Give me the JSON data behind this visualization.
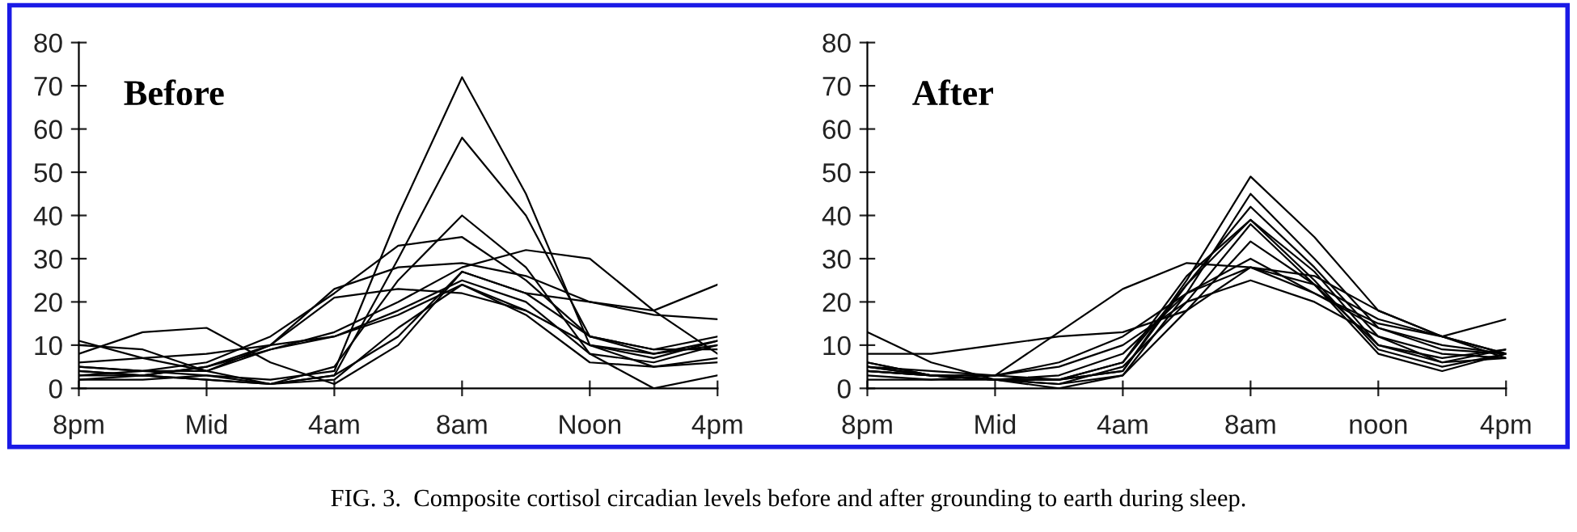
{
  "chart_data": [
    {
      "type": "line",
      "title": "Before",
      "categories": [
        "8pm",
        null,
        "Mid",
        null,
        "4am",
        null,
        "8am",
        null,
        "Noon",
        null,
        "4pm"
      ],
      "ylim": [
        0,
        80
      ],
      "yticks": [
        0,
        10,
        20,
        30,
        40,
        50,
        60,
        70,
        80
      ],
      "annotations": [
        "FIG. 3.  Composite cortisol circadian levels before and after grounding to earth during sleep."
      ],
      "series": [
        {
          "color": "#000000",
          "values": [
            5,
            4,
            3,
            2,
            4,
            40,
            72,
            45,
            10,
            8,
            11
          ]
        },
        {
          "color": "#000000",
          "values": [
            4,
            3,
            2,
            1,
            3,
            30,
            58,
            40,
            12,
            8,
            10
          ]
        },
        {
          "color": "#000000",
          "values": [
            10,
            9,
            4,
            1,
            5,
            25,
            40,
            28,
            8,
            0,
            3
          ]
        },
        {
          "color": "#000000",
          "values": [
            3,
            4,
            6,
            12,
            22,
            33,
            35,
            25,
            12,
            9,
            12
          ]
        },
        {
          "color": "#000000",
          "values": [
            2,
            3,
            5,
            9,
            13,
            20,
            28,
            32,
            30,
            18,
            8
          ]
        },
        {
          "color": "#000000",
          "values": [
            8,
            13,
            14,
            6,
            1,
            10,
            27,
            22,
            20,
            18,
            24
          ]
        },
        {
          "color": "#000000",
          "values": [
            11,
            7,
            4,
            10,
            23,
            28,
            29,
            26,
            20,
            17,
            16
          ]
        },
        {
          "color": "#000000",
          "values": [
            3,
            3,
            5,
            10,
            21,
            23,
            22,
            18,
            10,
            7,
            11
          ]
        },
        {
          "color": "#000000",
          "values": [
            5,
            4,
            4,
            9,
            12,
            18,
            25,
            20,
            8,
            6,
            10
          ]
        },
        {
          "color": "#000000",
          "values": [
            6,
            7,
            8,
            10,
            12,
            17,
            24,
            18,
            10,
            5,
            7
          ]
        },
        {
          "color": "#000000",
          "values": [
            2,
            2,
            3,
            1,
            3,
            12,
            27,
            22,
            12,
            9,
            9
          ]
        },
        {
          "color": "#000000",
          "values": [
            4,
            3,
            2,
            1,
            2,
            14,
            24,
            17,
            6,
            5,
            6
          ]
        }
      ]
    },
    {
      "type": "line",
      "title": "After",
      "categories": [
        "8pm",
        null,
        "Mid",
        null,
        "4am",
        null,
        "8am",
        null,
        "noon",
        null,
        "4pm"
      ],
      "ylim": [
        0,
        80
      ],
      "yticks": [
        0,
        10,
        20,
        30,
        40,
        50,
        60,
        70,
        80
      ],
      "series": [
        {
          "color": "#000000",
          "values": [
            5,
            4,
            3,
            2,
            4,
            25,
            49,
            35,
            18,
            12,
            8
          ]
        },
        {
          "color": "#000000",
          "values": [
            4,
            3,
            2,
            1,
            3,
            22,
            45,
            30,
            14,
            9,
            8
          ]
        },
        {
          "color": "#000000",
          "values": [
            6,
            3,
            2,
            2,
            4,
            24,
            42,
            28,
            12,
            6,
            7
          ]
        },
        {
          "color": "#000000",
          "values": [
            5,
            3,
            2,
            2,
            6,
            24,
            39,
            27,
            10,
            6,
            9
          ]
        },
        {
          "color": "#000000",
          "values": [
            13,
            6,
            2,
            2,
            6,
            26,
            39,
            25,
            9,
            5,
            8
          ]
        },
        {
          "color": "#000000",
          "values": [
            3,
            2,
            2,
            1,
            5,
            20,
            38,
            24,
            8,
            4,
            8
          ]
        },
        {
          "color": "#000000",
          "values": [
            4,
            3,
            2,
            0,
            3,
            18,
            34,
            24,
            10,
            7,
            9
          ]
        },
        {
          "color": "#000000",
          "values": [
            4,
            3,
            3,
            13,
            23,
            29,
            28,
            22,
            15,
            12,
            7
          ]
        },
        {
          "color": "#000000",
          "values": [
            8,
            8,
            10,
            12,
            13,
            18,
            28,
            24,
            16,
            12,
            16
          ]
        },
        {
          "color": "#000000",
          "values": [
            5,
            3,
            3,
            5,
            10,
            20,
            25,
            20,
            12,
            8,
            7
          ]
        },
        {
          "color": "#000000",
          "values": [
            6,
            3,
            2,
            3,
            8,
            22,
            30,
            22,
            14,
            10,
            8
          ]
        },
        {
          "color": "#000000",
          "values": [
            2,
            2,
            3,
            6,
            12,
            22,
            28,
            26,
            18,
            12,
            8
          ]
        }
      ]
    }
  ]
}
